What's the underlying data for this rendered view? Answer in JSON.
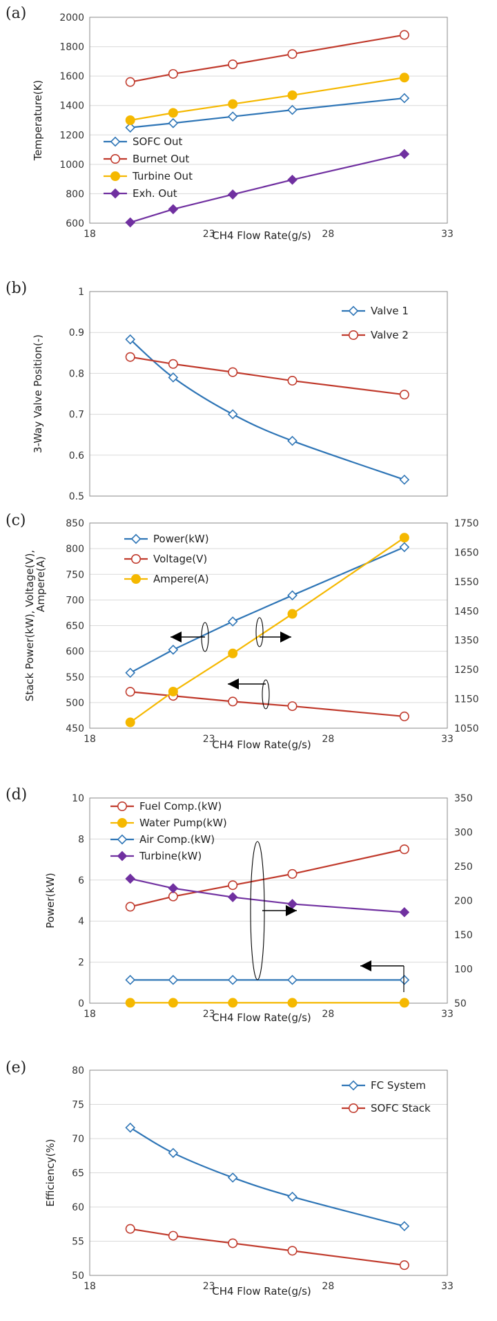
{
  "colors": {
    "blue": "#2e75b6",
    "red": "#c0392b",
    "orange": "#f5b800",
    "purple": "#7030a0",
    "frame": "#8a8a8a",
    "grid": "#d9d9d9",
    "arrow": "#000000"
  },
  "chart_data": [
    {
      "type": "line",
      "panel_label": "(a)",
      "xlabel": "CH4 Flow Rate(g/s)",
      "ylabel": "Temperature(K)",
      "xlim": [
        18,
        33
      ],
      "x_ticks": [
        "18",
        "23",
        "28",
        "33"
      ],
      "ylim": [
        600,
        2000
      ],
      "y_ticks": [
        "600",
        "800",
        "1000",
        "1200",
        "1400",
        "1600",
        "1800",
        "2000"
      ],
      "grid": true,
      "legend_position": "bottom-left",
      "series": [
        {
          "name": "SOFC Out",
          "color": "blue",
          "marker": "diamond-open",
          "x": [
            19.7,
            21.5,
            24,
            26.5,
            31.2
          ],
          "y": [
            1250,
            1280,
            1325,
            1370,
            1450
          ]
        },
        {
          "name": "Burnet Out",
          "color": "red",
          "marker": "circle-open",
          "x": [
            19.7,
            21.5,
            24,
            26.5,
            31.2
          ],
          "y": [
            1560,
            1615,
            1680,
            1750,
            1880
          ]
        },
        {
          "name": "Turbine Out",
          "color": "orange",
          "marker": "circle-filled",
          "x": [
            19.7,
            21.5,
            24,
            26.5,
            31.2
          ],
          "y": [
            1300,
            1350,
            1410,
            1470,
            1590
          ]
        },
        {
          "name": "Exh. Out",
          "color": "purple",
          "marker": "diamond-filled",
          "x": [
            19.7,
            21.5,
            24,
            26.5,
            31.2
          ],
          "y": [
            605,
            695,
            795,
            895,
            1070
          ]
        }
      ]
    },
    {
      "type": "line",
      "panel_label": "(b)",
      "xlabel": "",
      "ylabel": "3-Way Valve Position(-)",
      "xlim": [
        18,
        33
      ],
      "ylim": [
        0.5,
        1
      ],
      "y_ticks": [
        "0.5",
        "0.6",
        "0.7",
        "0.8",
        "0.9",
        "1"
      ],
      "grid": true,
      "legend_position": "top-right",
      "series": [
        {
          "name": "Valve 1",
          "color": "blue",
          "marker": "diamond-open",
          "curved": true,
          "x": [
            19.7,
            21.5,
            24,
            26.5,
            31.2
          ],
          "y": [
            0.883,
            0.79,
            0.7,
            0.635,
            0.54
          ]
        },
        {
          "name": "Valve 2",
          "color": "red",
          "marker": "circle-open",
          "x": [
            19.7,
            21.5,
            24,
            26.5,
            31.2
          ],
          "y": [
            0.84,
            0.823,
            0.803,
            0.782,
            0.748
          ]
        }
      ]
    },
    {
      "type": "line",
      "panel_label": "(c)",
      "xlabel": "CH4 Flow Rate(g/s)",
      "ylabel": "Stack Power(kW), Voltage(V),",
      "ylabel_line2": "Ampere(A)",
      "xlim": [
        18,
        33
      ],
      "x_ticks": [
        "18",
        "23",
        "28",
        "33"
      ],
      "ylim": [
        450,
        850
      ],
      "y_ticks": [
        "450",
        "500",
        "550",
        "600",
        "650",
        "700",
        "750",
        "800",
        "850"
      ],
      "y2lim": [
        1050,
        1750
      ],
      "y2_ticks": [
        "1050",
        "1150",
        "1250",
        "1350",
        "1450",
        "1550",
        "1650",
        "1750"
      ],
      "grid": true,
      "legend_position": "top-left",
      "series": [
        {
          "name": "Power(kW)",
          "color": "blue",
          "marker": "diamond-open",
          "axis": "left",
          "x": [
            19.7,
            21.5,
            24,
            26.5,
            31.2
          ],
          "y": [
            558,
            603,
            658,
            709,
            803
          ]
        },
        {
          "name": "Voltage(V)",
          "color": "red",
          "marker": "circle-open",
          "axis": "left",
          "x": [
            19.7,
            21.5,
            24,
            26.5,
            31.2
          ],
          "y": [
            521,
            513,
            502,
            493,
            473
          ]
        },
        {
          "name": "Ampere(A)",
          "color": "orange",
          "marker": "circle-filled",
          "axis": "right",
          "x": [
            19.7,
            21.5,
            24,
            26.5,
            31.2
          ],
          "y": [
            1070,
            1175,
            1305,
            1440,
            1700
          ]
        }
      ]
    },
    {
      "type": "line",
      "panel_label": "(d)",
      "xlabel": "CH4 Flow Rate(g/s)",
      "ylabel": "Power(kW)",
      "xlim": [
        18,
        33
      ],
      "x_ticks": [
        "18",
        "23",
        "28",
        "33"
      ],
      "ylim": [
        0,
        10
      ],
      "y_ticks": [
        "0",
        "2",
        "4",
        "6",
        "8",
        "10"
      ],
      "y2lim": [
        50,
        350
      ],
      "y2_ticks": [
        "50",
        "100",
        "150",
        "200",
        "250",
        "300",
        "350"
      ],
      "grid": true,
      "legend_position": "top-left",
      "series": [
        {
          "name": "Fuel Comp.(kW)",
          "color": "red",
          "marker": "circle-open",
          "axis": "left",
          "x": [
            19.7,
            21.5,
            24,
            26.5,
            31.2
          ],
          "y": [
            4.7,
            5.2,
            5.75,
            6.3,
            7.5
          ]
        },
        {
          "name": "Water Pump(kW)",
          "color": "orange",
          "marker": "circle-filled",
          "axis": "left",
          "x": [
            19.7,
            21.5,
            24,
            26.5,
            31.2
          ],
          "y": [
            0.02,
            0.02,
            0.02,
            0.02,
            0.02
          ]
        },
        {
          "name": "Air Comp.(kW)",
          "color": "blue",
          "marker": "diamond-open",
          "axis": "right",
          "x": [
            19.7,
            21.5,
            24,
            26.5,
            31.2
          ],
          "y": [
            84,
            84,
            84,
            84,
            84
          ]
        },
        {
          "name": "Turbine(kW)",
          "color": "purple",
          "marker": "diamond-filled",
          "axis": "right",
          "x": [
            19.7,
            21.5,
            24,
            26.5,
            31.2
          ],
          "y": [
            232,
            218,
            205,
            195,
            183
          ]
        }
      ]
    },
    {
      "type": "line",
      "panel_label": "(e)",
      "xlabel": "CH4 Flow Rate(g/s)",
      "ylabel": "Efficiency(%)",
      "xlim": [
        18,
        33
      ],
      "x_ticks": [
        "18",
        "23",
        "28",
        "33"
      ],
      "ylim": [
        50,
        80
      ],
      "y_ticks": [
        "50",
        "55",
        "60",
        "65",
        "70",
        "75",
        "80"
      ],
      "grid": true,
      "legend_position": "top-right",
      "series": [
        {
          "name": "FC System",
          "color": "blue",
          "marker": "diamond-open",
          "curved": true,
          "x": [
            19.7,
            21.5,
            24,
            26.5,
            31.2
          ],
          "y": [
            71.6,
            67.9,
            64.3,
            61.5,
            57.2
          ]
        },
        {
          "name": "SOFC Stack",
          "color": "red",
          "marker": "circle-open",
          "x": [
            19.7,
            21.5,
            24,
            26.5,
            31.2
          ],
          "y": [
            56.8,
            55.8,
            54.7,
            53.6,
            51.5
          ]
        }
      ]
    }
  ]
}
